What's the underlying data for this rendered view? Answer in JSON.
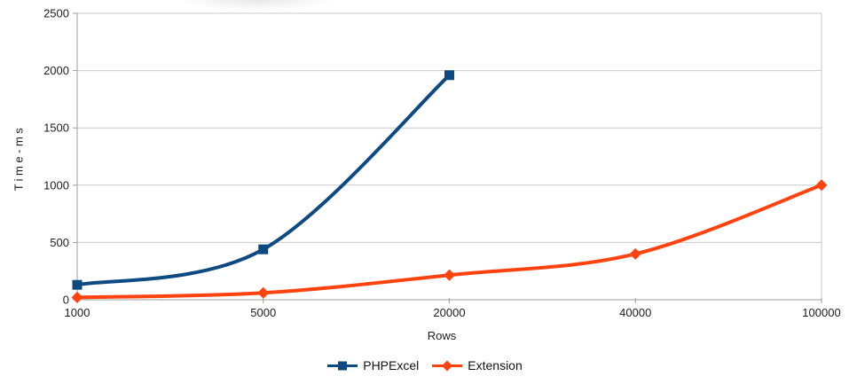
{
  "page": {
    "background": "#ffffff"
  },
  "chart_data": {
    "type": "line",
    "title": "",
    "xlabel": "Rows",
    "ylabel": "Time-ms",
    "categories": [
      "1000",
      "5000",
      "20000",
      "40000",
      "100000"
    ],
    "series": [
      {
        "name": "PHPExcel",
        "color": "#0e4a82",
        "marker": "square",
        "values": [
          130,
          440,
          1960,
          null,
          null
        ]
      },
      {
        "name": "Extension",
        "color": "#ff420e",
        "marker": "diamond",
        "values": [
          20,
          60,
          215,
          400,
          1000
        ]
      }
    ],
    "ylim": [
      0,
      2500
    ],
    "yticks": [
      0,
      500,
      1000,
      1500,
      2000,
      2500
    ],
    "grid": "horizontal-only",
    "grid_color": "#c9c9c9",
    "axis_color": "#9e9e9e",
    "text_color": "#1c1c1c",
    "legend_position": "bottom",
    "line_style": "smooth"
  }
}
